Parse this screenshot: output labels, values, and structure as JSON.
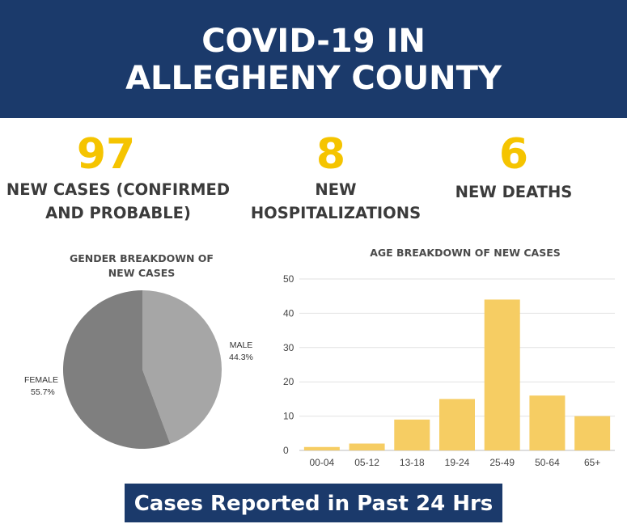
{
  "header": {
    "title_line1": "COVID-19 IN",
    "title_line2": "ALLEGHENY COUNTY"
  },
  "stats": [
    {
      "value": "97",
      "label_line1": "NEW CASES (CONFIRMED",
      "label_line2": "AND PROBABLE)"
    },
    {
      "value": "8",
      "label_line1": "NEW",
      "label_line2": "HOSPITALIZATIONS"
    },
    {
      "value": "6",
      "label_line1": "NEW DEATHS"
    }
  ],
  "footer": {
    "label": "Cases Reported in Past 24 Hrs"
  },
  "colors": {
    "banner": "#1b3a6b",
    "accent": "#f5c400",
    "bar": "#f6cd63",
    "male": "#a6a6a6",
    "female": "#7f7f7f"
  },
  "chart_data": [
    {
      "type": "pie",
      "title_line1": "GENDER BREAKDOWN OF",
      "title_line2": "NEW CASES",
      "slices": [
        {
          "label": "MALE",
          "value": 44.3,
          "value_label": "44.3%",
          "color": "#a6a6a6"
        },
        {
          "label": "FEMALE",
          "value": 55.7,
          "value_label": "55.7%",
          "color": "#7f7f7f"
        }
      ]
    },
    {
      "type": "bar",
      "title": "AGE BREAKDOWN OF  NEW CASES",
      "categories": [
        "00-04",
        "05-12",
        "13-18",
        "19-24",
        "25-49",
        "50-64",
        "65+"
      ],
      "values": [
        1,
        2,
        9,
        15,
        44,
        16,
        10
      ],
      "ylim": [
        0,
        50
      ],
      "yticks": [
        "0",
        "10",
        "20",
        "30",
        "40",
        "50"
      ],
      "grid": true
    }
  ]
}
